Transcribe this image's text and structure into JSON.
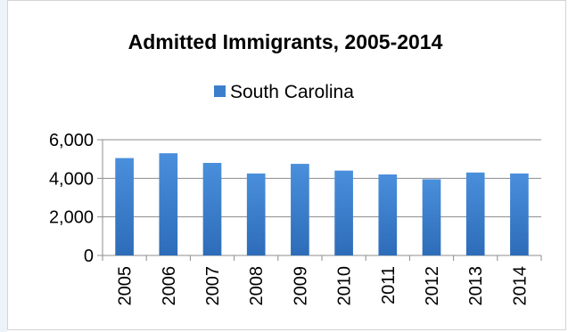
{
  "chart_data": {
    "type": "bar",
    "title": "Admitted Immigrants, 2005-2014",
    "categories": [
      "2005",
      "2006",
      "2007",
      "2008",
      "2009",
      "2010",
      "2011",
      "2012",
      "2013",
      "2014"
    ],
    "series": [
      {
        "name": "South Carolina",
        "values": [
          5050,
          5300,
          4800,
          4250,
          4750,
          4400,
          4200,
          3950,
          4300,
          4250
        ],
        "color": "#3b7fcc"
      }
    ],
    "ylim": [
      0,
      6000
    ],
    "yticks": [
      0,
      2000,
      4000,
      6000
    ],
    "ytick_labels": [
      "0",
      "2,000",
      "4,000",
      "6,000"
    ],
    "xlabel": "",
    "ylabel": "",
    "legend_position": "top",
    "grid": true
  }
}
